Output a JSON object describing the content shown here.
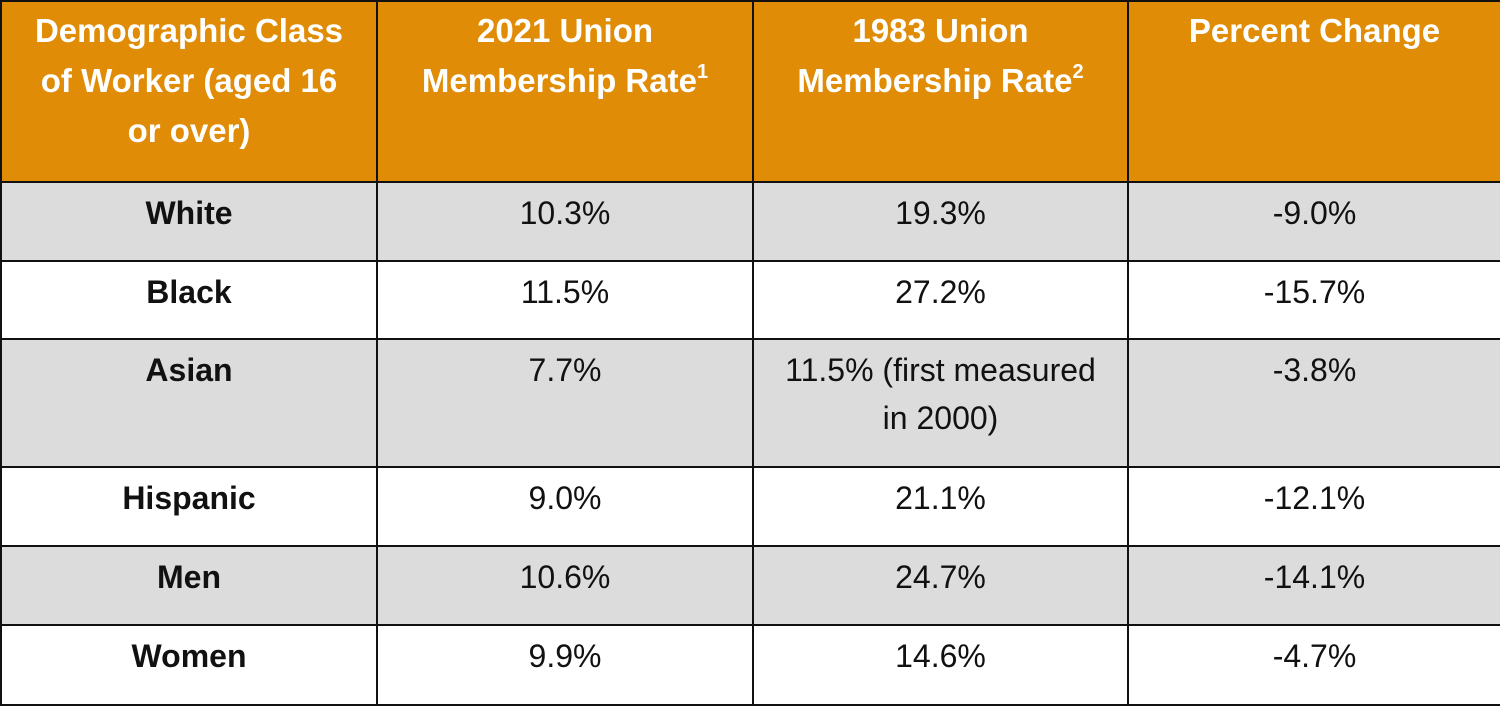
{
  "table": {
    "header": [
      {
        "text": "Demographic Class of Worker (aged 16 or over)"
      },
      {
        "text": "2021 Union Membership Rate",
        "sup": "1"
      },
      {
        "text": "1983 Union Membership Rate",
        "sup": "2"
      },
      {
        "text": "Percent Change"
      }
    ],
    "rows": [
      [
        "White",
        "10.3%",
        "19.3%",
        "-9.0%"
      ],
      [
        "Black",
        "11.5%",
        "27.2%",
        "-15.7%"
      ],
      [
        "Asian",
        "7.7%",
        "11.5% (first measured in 2000)",
        "-3.8%"
      ],
      [
        "Hispanic",
        "9.0%",
        "21.1%",
        "-12.1%"
      ],
      [
        "Men",
        "10.6%",
        "24.7%",
        "-14.1%"
      ],
      [
        "Women",
        "9.9%",
        "14.6%",
        "-4.7%"
      ]
    ]
  }
}
